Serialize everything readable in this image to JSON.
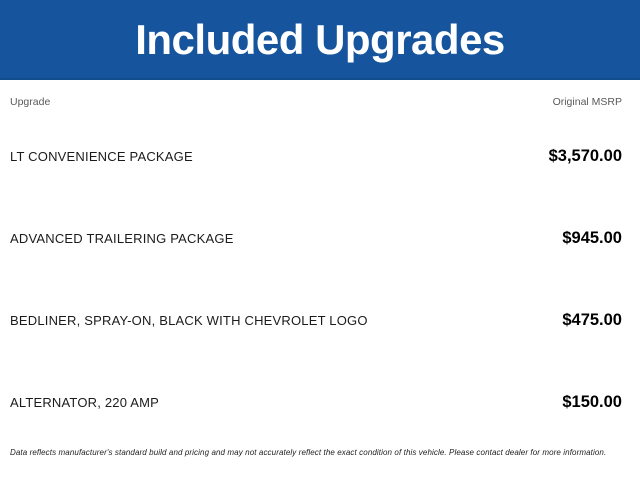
{
  "header": {
    "title": "Included Upgrades",
    "background_color": "#16549e",
    "border_color": "#114c8c",
    "text_color": "#ffffff"
  },
  "table": {
    "columns": [
      "Upgrade",
      "Original MSRP"
    ],
    "rows": [
      {
        "upgrade": "LT CONVENIENCE PACKAGE",
        "msrp": "$3,570.00"
      },
      {
        "upgrade": "ADVANCED TRAILERING PACKAGE",
        "msrp": "$945.00"
      },
      {
        "upgrade": "BEDLINER, SPRAY-ON, BLACK WITH CHEVROLET LOGO",
        "msrp": "$475.00"
      },
      {
        "upgrade": "ALTERNATOR, 220 AMP",
        "msrp": "$150.00"
      }
    ]
  },
  "footer": {
    "disclaimer": "Data reflects manufacturer's standard build and pricing and may not accurately reflect the exact condition of this vehicle. Please contact dealer for more information."
  }
}
